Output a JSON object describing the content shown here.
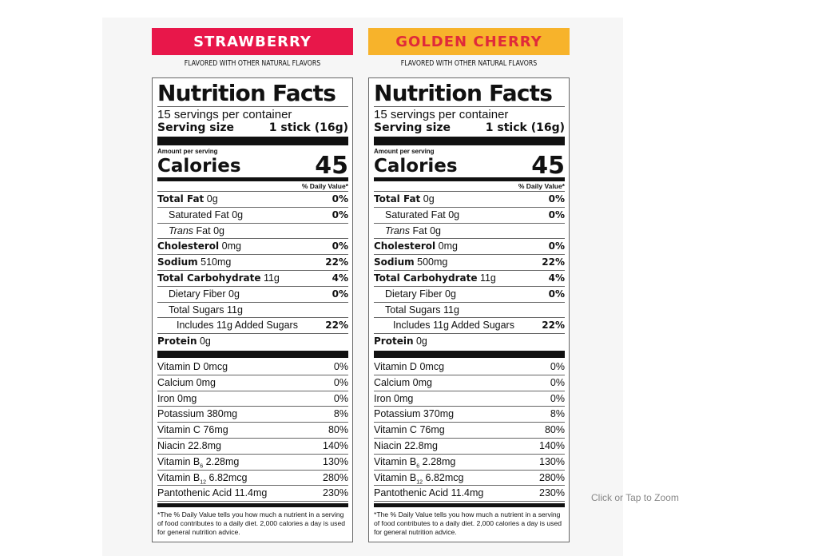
{
  "panels": [
    {
      "flavor": "STRAWBERRY",
      "banner_bg": "#e8174a",
      "banner_fg": "#ffffff",
      "subtitle": "FLAVORED WITH OTHER NATURAL FLAVORS",
      "title": "Nutrition Facts",
      "servings": "15 servings per container",
      "serving_size_label": "Serving size",
      "serving_size_value": "1 stick (16g)",
      "amount_per_serving": "Amount per serving",
      "calories_label": "Calories",
      "calories": "45",
      "dv_header": "% Daily Value*",
      "nutrients": [
        {
          "name": "Total Fat",
          "amount": "0g",
          "dv": "0%",
          "bold": true,
          "indent": 0
        },
        {
          "name": "Saturated Fat",
          "amount": "0g",
          "dv": "0%",
          "bold": false,
          "indent": 1
        },
        {
          "name": "Trans",
          "name_rest": "Fat",
          "amount": "0g",
          "dv": "",
          "bold": false,
          "indent": 1,
          "italic": true
        },
        {
          "name": "Cholesterol",
          "amount": "0mg",
          "dv": "0%",
          "bold": true,
          "indent": 0
        },
        {
          "name": "Sodium",
          "amount": "510mg",
          "dv": "22%",
          "bold": true,
          "indent": 0
        },
        {
          "name": "Total Carbohydrate",
          "amount": "11g",
          "dv": "4%",
          "bold": true,
          "indent": 0
        },
        {
          "name": "Dietary Fiber",
          "amount": "0g",
          "dv": "0%",
          "bold": false,
          "indent": 1
        },
        {
          "name": "Total Sugars",
          "amount": "11g",
          "dv": "",
          "bold": false,
          "indent": 1
        },
        {
          "name": "Includes 11g Added Sugars",
          "amount": "",
          "dv": "22%",
          "bold": false,
          "indent": 2
        },
        {
          "name": "Protein",
          "amount": "0g",
          "dv": "",
          "bold": true,
          "indent": 0
        }
      ],
      "vitamins": [
        {
          "name": "Vitamin D",
          "amount": "0mcg",
          "dv": "0%"
        },
        {
          "name": "Calcium",
          "amount": "0mg",
          "dv": "0%"
        },
        {
          "name": "Iron",
          "amount": "0mg",
          "dv": "0%"
        },
        {
          "name": "Potassium",
          "amount": "380mg",
          "dv": "8%"
        },
        {
          "name": "Vitamin C",
          "amount": "76mg",
          "dv": "80%"
        },
        {
          "name": "Niacin",
          "amount": "22.8mg",
          "dv": "140%"
        },
        {
          "name": "Vitamin B",
          "sub": "6",
          "amount": "2.28mg",
          "dv": "130%"
        },
        {
          "name": "Vitamin B",
          "sub": "12",
          "amount": "6.82mcg",
          "dv": "280%"
        },
        {
          "name": "Pantothenic Acid",
          "amount": "11.4mg",
          "dv": "230%"
        }
      ],
      "footnote": "*The % Daily Value tells you how much a nutrient in a serving of food contributes to a daily diet. 2,000 calories a day is used for general nutrition advice."
    },
    {
      "flavor": "GOLDEN CHERRY",
      "banner_bg": "#f7b32b",
      "banner_fg": "#e02a3a",
      "subtitle": "FLAVORED WITH OTHER NATURAL FLAVORS",
      "title": "Nutrition Facts",
      "servings": "15 servings per container",
      "serving_size_label": "Serving size",
      "serving_size_value": "1 stick (16g)",
      "amount_per_serving": "Amount per serving",
      "calories_label": "Calories",
      "calories": "45",
      "dv_header": "% Daily Value*",
      "nutrients": [
        {
          "name": "Total Fat",
          "amount": "0g",
          "dv": "0%",
          "bold": true,
          "indent": 0
        },
        {
          "name": "Saturated Fat",
          "amount": "0g",
          "dv": "0%",
          "bold": false,
          "indent": 1
        },
        {
          "name": "Trans",
          "name_rest": "Fat",
          "amount": "0g",
          "dv": "",
          "bold": false,
          "indent": 1,
          "italic": true
        },
        {
          "name": "Cholesterol",
          "amount": "0mg",
          "dv": "0%",
          "bold": true,
          "indent": 0
        },
        {
          "name": "Sodium",
          "amount": "500mg",
          "dv": "22%",
          "bold": true,
          "indent": 0
        },
        {
          "name": "Total Carbohydrate",
          "amount": "11g",
          "dv": "4%",
          "bold": true,
          "indent": 0
        },
        {
          "name": "Dietary Fiber",
          "amount": "0g",
          "dv": "0%",
          "bold": false,
          "indent": 1
        },
        {
          "name": "Total Sugars",
          "amount": "11g",
          "dv": "",
          "bold": false,
          "indent": 1
        },
        {
          "name": "Includes 11g Added Sugars",
          "amount": "",
          "dv": "22%",
          "bold": false,
          "indent": 2
        },
        {
          "name": "Protein",
          "amount": "0g",
          "dv": "",
          "bold": true,
          "indent": 0
        }
      ],
      "vitamins": [
        {
          "name": "Vitamin D",
          "amount": "0mcg",
          "dv": "0%"
        },
        {
          "name": "Calcium",
          "amount": "0mg",
          "dv": "0%"
        },
        {
          "name": "Iron",
          "amount": "0mg",
          "dv": "0%"
        },
        {
          "name": "Potassium",
          "amount": "370mg",
          "dv": "8%"
        },
        {
          "name": "Vitamin C",
          "amount": "76mg",
          "dv": "80%"
        },
        {
          "name": "Niacin",
          "amount": "22.8mg",
          "dv": "140%"
        },
        {
          "name": "Vitamin B",
          "sub": "6",
          "amount": "2.28mg",
          "dv": "130%"
        },
        {
          "name": "Vitamin B",
          "sub": "12",
          "amount": "6.82mcg",
          "dv": "280%"
        },
        {
          "name": "Pantothenic Acid",
          "amount": "11.4mg",
          "dv": "230%"
        }
      ],
      "footnote": "*The % Daily Value tells you how much a nutrient in a serving of food contributes to a daily diet. 2,000 calories a day is used for general nutrition advice."
    }
  ],
  "zoom_hint": "Click or Tap to Zoom"
}
